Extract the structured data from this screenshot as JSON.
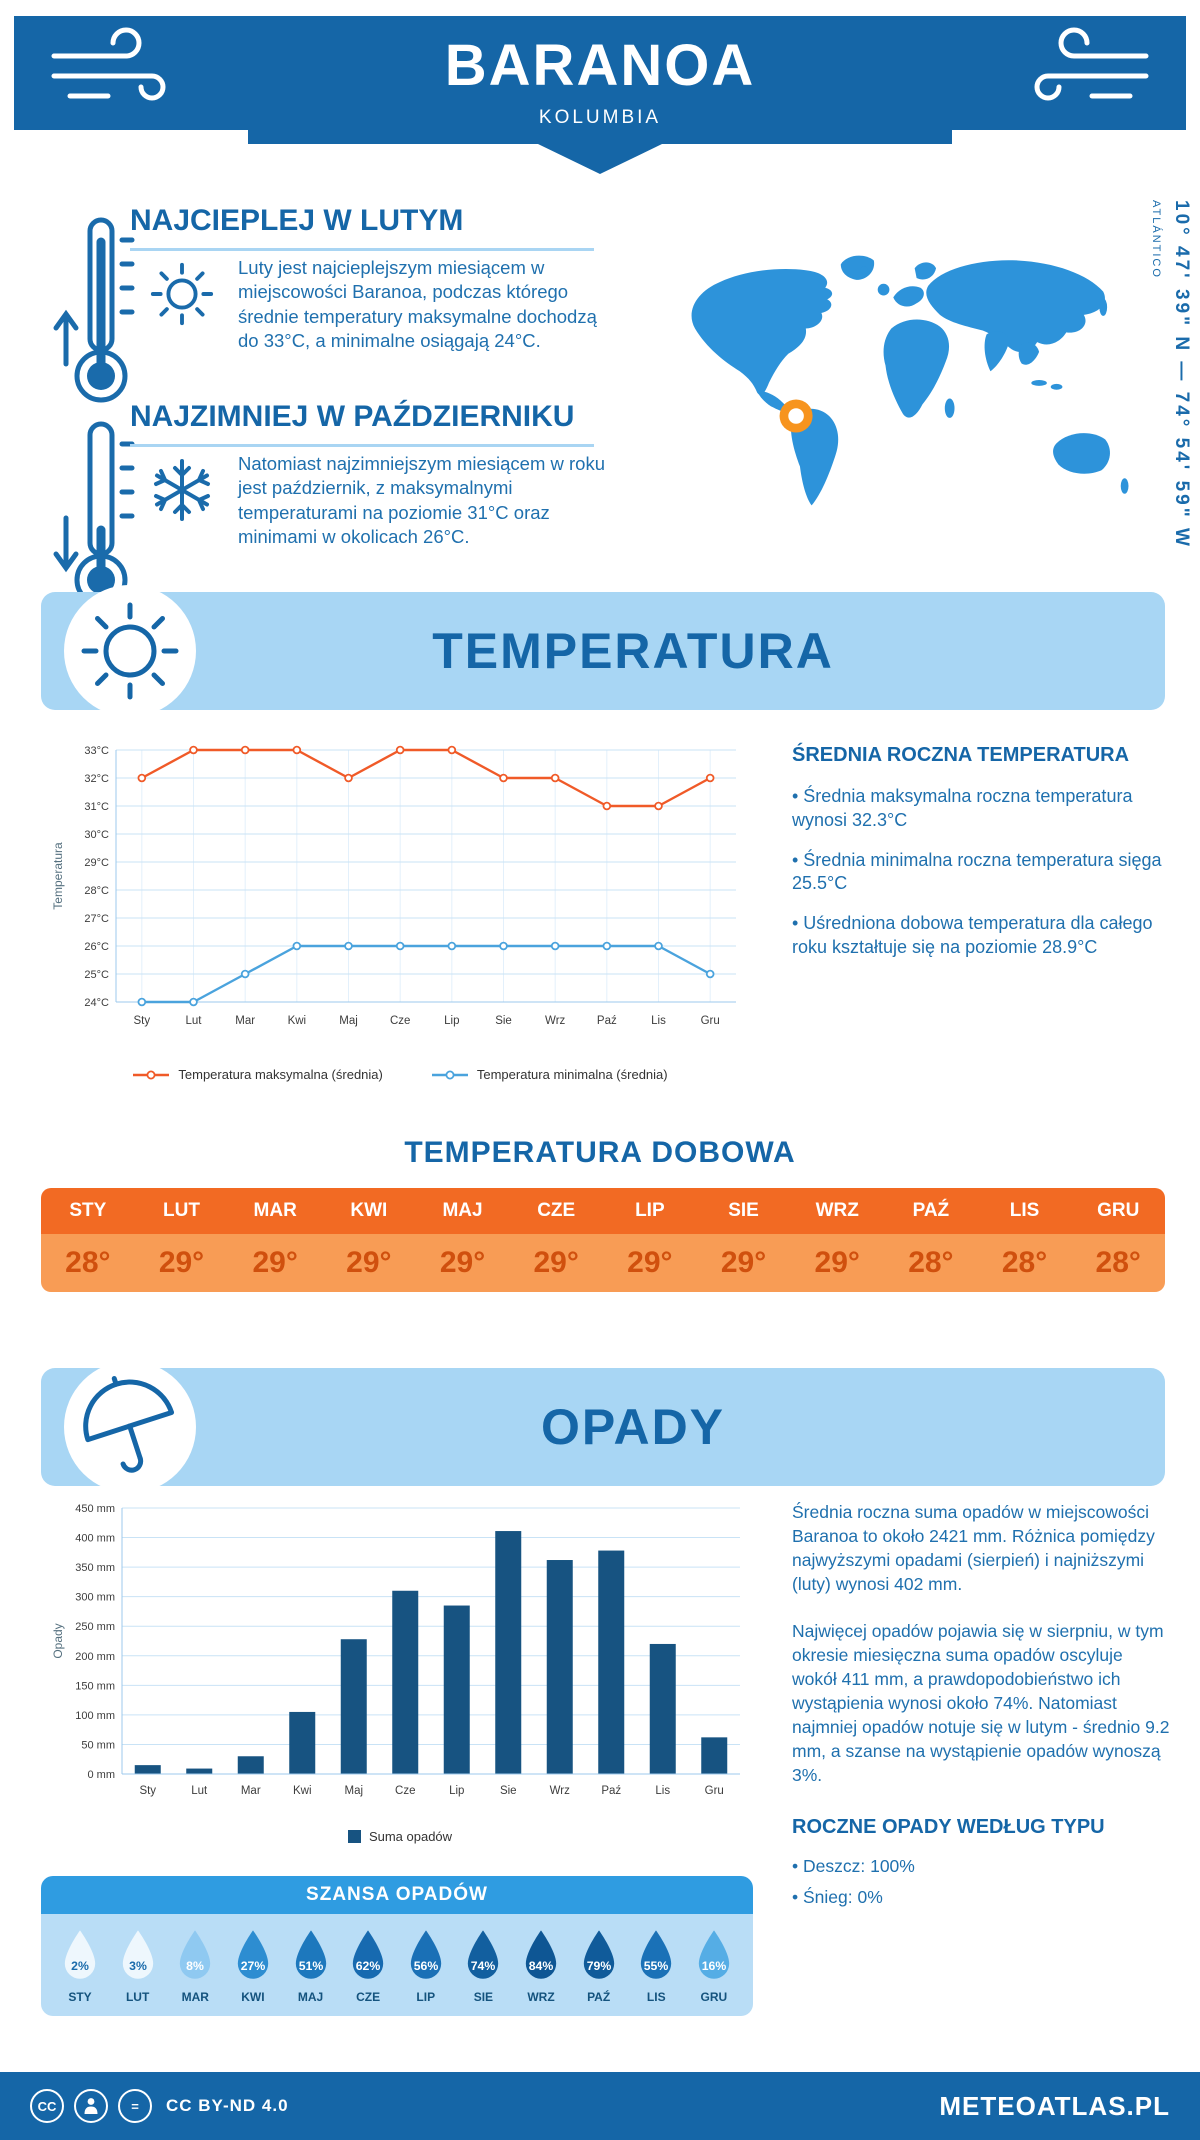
{
  "colors": {
    "primary": "#1566a7",
    "light_blue_banner": "#a8d6f4",
    "body_text_blue": "#1f70ae",
    "orange_header": "#f26a23",
    "orange_row": "#f89c55",
    "map_blue": "#2d93da",
    "marker_orange": "#f7941e",
    "bar_blue": "#175381",
    "chance_header_blue": "#2f9ce1"
  },
  "header": {
    "title": "BARANOA",
    "subtitle": "KOLUMBIA",
    "coordinates": "10° 47' 39\" N — 74° 54' 59\" W",
    "region": "ATLÁNTICO"
  },
  "warmest": {
    "heading": "NAJCIEPLEJ W LUTYM",
    "text": "Luty jest najcieplejszym miesiącem w miejscowości Baranoa, podczas którego średnie temperatury maksymalne dochodzą do 33°C, a minimalne osiągają 24°C."
  },
  "coldest": {
    "heading": "NAJZIMNIEJ W PAŹDZIERNIKU",
    "text": "Natomiast najzimniejszym miesiącem w roku jest październik, z maksymalnymi temperaturami na poziomie 31°C oraz minimami w okolicach 26°C."
  },
  "temperature": {
    "title": "TEMPERATURA",
    "summary_heading": "ŚREDNIA ROCZNA TEMPERATURA",
    "bullets": [
      "• Średnia maksymalna roczna temperatura wynosi 32.3°C",
      "• Średnia minimalna roczna temperatura sięga 25.5°C",
      "• Uśredniona dobowa temperatura dla całego roku kształtuje się na poziomie 28.9°C"
    ],
    "daily_heading": "TEMPERATURA DOBOWA"
  },
  "precipitation": {
    "title": "OPADY",
    "para1": "Średnia roczna suma opadów w miejscowości Baranoa to około 2421 mm. Różnica pomiędzy najwyższymi opadami (sierpień) i najniższymi (luty) wynosi 402 mm.",
    "para2": "Najwięcej opadów pojawia się w sierpniu, w tym okresie miesięczna suma opadów oscyluje wokół 411 mm, a prawdopodobieństwo ich wystąpienia wynosi około 74%. Natomiast najmniej opadów notuje się w lutym - średnio 9.2 mm, a szanse na wystąpienie opadów wynoszą 3%.",
    "type_heading": "ROCZNE OPADY WEDŁUG TYPU",
    "type_bullets": [
      "• Deszcz: 100%",
      "• Śnieg: 0%"
    ]
  },
  "chance": {
    "title": "SZANSA OPADÓW"
  },
  "footer": {
    "license": "CC BY-ND 4.0",
    "brand": "METEOATLAS.PL"
  },
  "chart_data": [
    {
      "type": "line",
      "categories": [
        "Sty",
        "Lut",
        "Mar",
        "Kwi",
        "Maj",
        "Cze",
        "Lip",
        "Sie",
        "Wrz",
        "Paź",
        "Lis",
        "Gru"
      ],
      "series": [
        {
          "name": "Temperatura maksymalna (średnia)",
          "color": "#f05a28",
          "values": [
            32,
            33,
            33,
            33,
            32,
            33,
            33,
            32,
            32,
            31,
            31,
            32
          ]
        },
        {
          "name": "Temperatura minimalna (średnia)",
          "color": "#4aa3dd",
          "values": [
            24,
            24,
            25,
            26,
            26,
            26,
            26,
            26,
            26,
            26,
            26,
            25
          ]
        }
      ],
      "ylabel": "Temperatura",
      "ylim": [
        24,
        33
      ],
      "ytick_step": 1,
      "ytick_suffix": "°C",
      "grid": true,
      "legend_position": "bottom"
    },
    {
      "type": "table",
      "title": "TEMPERATURA DOBOWA",
      "categories": [
        "STY",
        "LUT",
        "MAR",
        "KWI",
        "MAJ",
        "CZE",
        "LIP",
        "SIE",
        "WRZ",
        "PAŹ",
        "LIS",
        "GRU"
      ],
      "values": [
        "28°",
        "29°",
        "29°",
        "29°",
        "29°",
        "29°",
        "29°",
        "29°",
        "29°",
        "28°",
        "28°",
        "28°"
      ],
      "header_bg": "#f26a23",
      "row_bg": "#f89c55",
      "value_color": "#d0500e"
    },
    {
      "type": "bar",
      "categories": [
        "Sty",
        "Lut",
        "Mar",
        "Kwi",
        "Maj",
        "Cze",
        "Lip",
        "Sie",
        "Wrz",
        "Paź",
        "Lis",
        "Gru"
      ],
      "values": [
        15,
        9.2,
        30,
        105,
        228,
        310,
        285,
        411,
        362,
        378,
        220,
        62
      ],
      "ylabel": "Opady",
      "ylim": [
        0,
        450
      ],
      "ytick_step": 50,
      "ytick_suffix": " mm",
      "legend": "Suma opadów",
      "color": "#175381",
      "grid": true
    },
    {
      "type": "droplets",
      "title": "SZANSA OPADÓW",
      "categories": [
        "STY",
        "LUT",
        "MAR",
        "KWI",
        "MAJ",
        "CZE",
        "LIP",
        "SIE",
        "WRZ",
        "PAŹ",
        "LIS",
        "GRU"
      ],
      "values": [
        2,
        3,
        8,
        27,
        51,
        62,
        56,
        74,
        84,
        79,
        55,
        16
      ],
      "colors": [
        "#eef7fd",
        "#eef7fd",
        "#8fc9f1",
        "#2d8dd1",
        "#1d78bd",
        "#176ab0",
        "#1a70b6",
        "#125f9f",
        "#0e5694",
        "#105b9a",
        "#1a71b7",
        "#55ade5"
      ],
      "label_dark": "#1a6bab"
    }
  ]
}
